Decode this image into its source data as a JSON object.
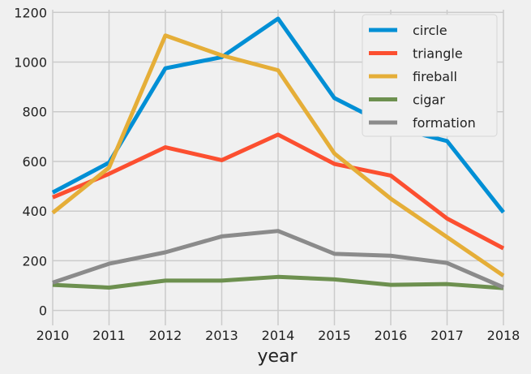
{
  "chart_data": {
    "type": "line",
    "title": "",
    "xlabel": "year",
    "ylabel": "",
    "x": [
      2010,
      2011,
      2012,
      2013,
      2014,
      2015,
      2016,
      2017,
      2018
    ],
    "xlim": [
      2010,
      2018
    ],
    "ylim": [
      -60,
      1250
    ],
    "yticks": [
      0,
      200,
      400,
      600,
      800,
      1000,
      1200
    ],
    "grid": true,
    "legend_position": "top-right",
    "series": [
      {
        "name": "circle",
        "color": "#008fd5",
        "values": [
          475,
          595,
          975,
          1020,
          1175,
          855,
          740,
          682,
          395
        ]
      },
      {
        "name": "triangle",
        "color": "#fc4f30",
        "values": [
          455,
          550,
          657,
          605,
          708,
          590,
          543,
          370,
          250
        ]
      },
      {
        "name": "fireball",
        "color": "#e5ae38",
        "values": [
          393,
          575,
          1107,
          1027,
          967,
          632,
          450,
          295,
          140
        ]
      },
      {
        "name": "cigar",
        "color": "#6d904f",
        "values": [
          103,
          92,
          120,
          120,
          135,
          125,
          103,
          106,
          90
        ]
      },
      {
        "name": "formation",
        "color": "#8b8b8b",
        "values": [
          112,
          188,
          234,
          298,
          320,
          228,
          220,
          191,
          93
        ]
      }
    ]
  }
}
